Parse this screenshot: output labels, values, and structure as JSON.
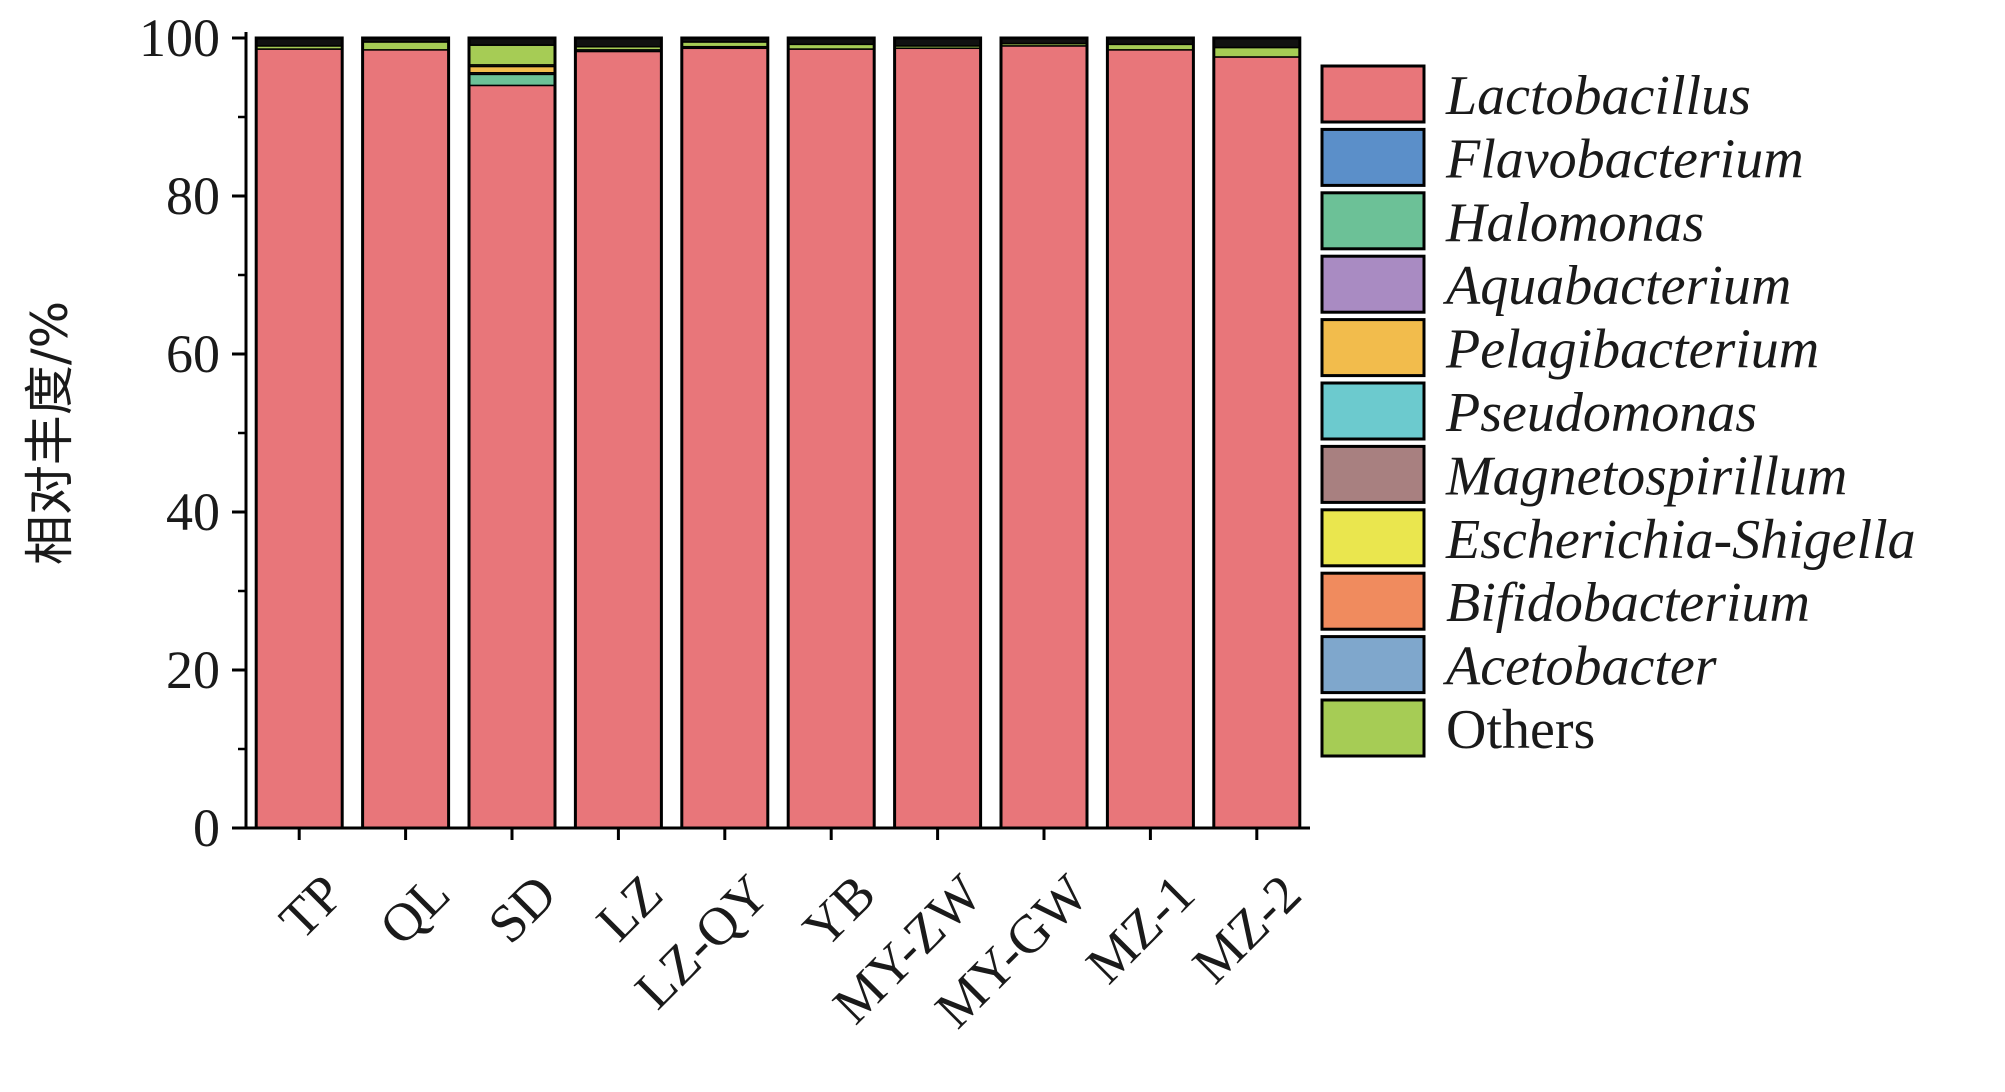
{
  "chart_data": {
    "type": "bar",
    "stacked": true,
    "ylabel": "相对丰度/%",
    "xlabel": "",
    "ylim": [
      0,
      100
    ],
    "yticks": [
      0,
      20,
      40,
      60,
      80,
      100
    ],
    "grid": false,
    "legend_position": "right",
    "categories": [
      "TP",
      "QL",
      "SD",
      "LZ",
      "LZ-QY",
      "YB",
      "MY-ZW",
      "MY-GW",
      "MZ-1",
      "MZ-2"
    ],
    "series": [
      {
        "name": "Lactobacillus",
        "color": "#E8767A",
        "values": [
          98.6,
          98.5,
          94.0,
          98.3,
          98.7,
          98.6,
          98.7,
          99.0,
          98.5,
          97.6
        ]
      },
      {
        "name": "Flavobacterium",
        "color": "#5B8FC9",
        "values": [
          0,
          0,
          0,
          0.2,
          0,
          0,
          0,
          0,
          0,
          0
        ]
      },
      {
        "name": "Halomonas",
        "color": "#6CC197",
        "values": [
          0,
          0,
          1.4,
          0,
          0,
          0,
          0,
          0,
          0,
          0
        ]
      },
      {
        "name": "Aquabacterium",
        "color": "#A98BC2",
        "values": [
          0,
          0,
          0.2,
          0,
          0,
          0,
          0,
          0,
          0,
          0
        ]
      },
      {
        "name": "Pelagibacterium",
        "color": "#F2BC4C",
        "values": [
          0,
          0,
          0.8,
          0,
          0.2,
          0,
          0,
          0,
          0,
          0
        ]
      },
      {
        "name": "Pseudomonas",
        "color": "#6CCACE",
        "values": [
          0,
          0,
          0,
          0,
          0,
          0,
          0,
          0,
          0,
          0
        ]
      },
      {
        "name": "Magnetospirillum",
        "color": "#A88080",
        "values": [
          0,
          0,
          0,
          0,
          0,
          0,
          0,
          0,
          0,
          0
        ]
      },
      {
        "name": "Escherichia-Shigella",
        "color": "#EAE64E",
        "values": [
          0,
          0,
          0.2,
          0,
          0,
          0,
          0,
          0,
          0,
          0
        ]
      },
      {
        "name": "Bifidobacterium",
        "color": "#F08B5E",
        "values": [
          0,
          0,
          0,
          0,
          0,
          0,
          0,
          0,
          0,
          0
        ]
      },
      {
        "name": "Acetobacter",
        "color": "#7FA7CC",
        "values": [
          0,
          0,
          0,
          0,
          0,
          0,
          0,
          0,
          0,
          0
        ]
      },
      {
        "name": "Others",
        "color": "#A6CC55",
        "values": [
          0.4,
          1.0,
          2.5,
          0.4,
          0.6,
          0.6,
          0.3,
          0.3,
          0.7,
          1.2
        ]
      }
    ],
    "remainder_color": "#111111"
  },
  "legend_italic": [
    true,
    true,
    true,
    true,
    true,
    true,
    true,
    true,
    true,
    true,
    false
  ]
}
